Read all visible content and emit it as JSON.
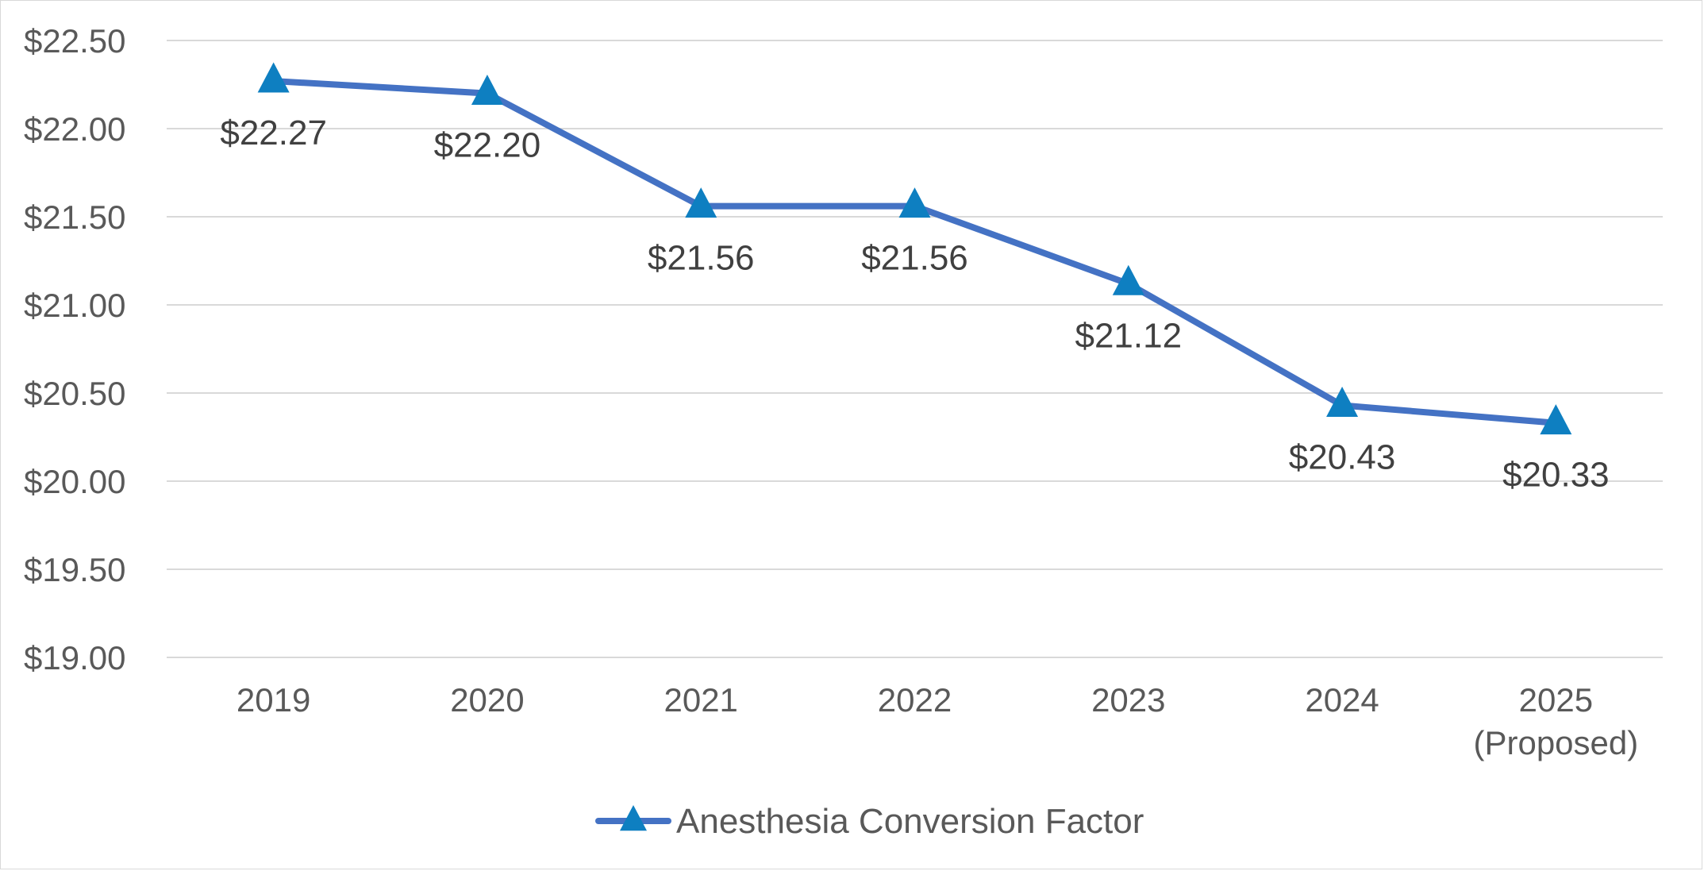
{
  "chart_data": {
    "type": "line",
    "categories": [
      "2019",
      "2020",
      "2021",
      "2022",
      "2023",
      "2024",
      "2025\n(Proposed)"
    ],
    "series": [
      {
        "name": "Anesthesia Conversion Factor",
        "values": [
          22.27,
          22.2,
          21.56,
          21.56,
          21.12,
          20.43,
          20.33
        ],
        "data_labels": [
          "$22.27",
          "$22.20",
          "$21.56",
          "$21.56",
          "$21.12",
          "$20.43",
          "$20.33"
        ],
        "line_color": "#4472C4",
        "marker": "triangle",
        "marker_color": "#0E7FC1"
      }
    ],
    "ylim": [
      19.0,
      22.5
    ],
    "y_ticks": [
      19.0,
      19.5,
      20.0,
      20.5,
      21.0,
      21.5,
      22.0,
      22.5
    ],
    "y_tick_labels": [
      "$19.00",
      "$19.50",
      "$20.00",
      "$20.50",
      "$21.00",
      "$21.50",
      "$22.00",
      "$22.50"
    ],
    "grid": true,
    "legend_position": "bottom",
    "title": "",
    "xlabel": "",
    "ylabel": ""
  }
}
